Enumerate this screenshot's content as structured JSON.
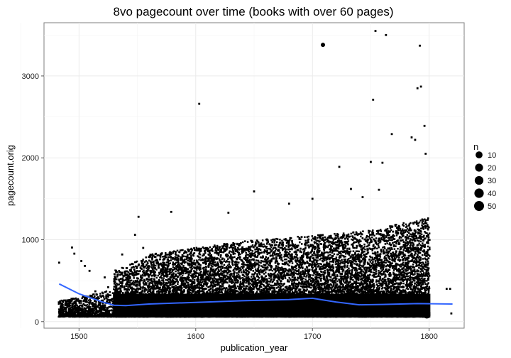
{
  "chart_data": {
    "type": "scatter",
    "title": "8vo pagecount over time (books with over 60 pages)",
    "xlabel": "publication_year",
    "ylabel": "pagecount.orig",
    "xlim": [
      1470,
      1830
    ],
    "ylim": [
      -80,
      3650
    ],
    "x_ticks": [
      1500,
      1600,
      1700,
      1800
    ],
    "y_ticks": [
      0,
      1000,
      2000,
      3000
    ],
    "grid": true,
    "point_color": "#000000",
    "smooth_color": "#3366FF",
    "outlier_points": [
      {
        "x": 1483,
        "y": 720
      },
      {
        "x": 1483,
        "y": 120
      },
      {
        "x": 1490,
        "y": 260
      },
      {
        "x": 1494,
        "y": 905
      },
      {
        "x": 1496,
        "y": 830
      },
      {
        "x": 1502,
        "y": 740
      },
      {
        "x": 1505,
        "y": 680
      },
      {
        "x": 1509,
        "y": 620
      },
      {
        "x": 1514,
        "y": 370
      },
      {
        "x": 1517,
        "y": 210
      },
      {
        "x": 1522,
        "y": 540
      },
      {
        "x": 1525,
        "y": 420
      },
      {
        "x": 1537,
        "y": 820
      },
      {
        "x": 1548,
        "y": 1060
      },
      {
        "x": 1551,
        "y": 1280
      },
      {
        "x": 1555,
        "y": 900
      },
      {
        "x": 1579,
        "y": 1340
      },
      {
        "x": 1603,
        "y": 2660
      },
      {
        "x": 1628,
        "y": 1330
      },
      {
        "x": 1650,
        "y": 1590
      },
      {
        "x": 1680,
        "y": 1440
      },
      {
        "x": 1700,
        "y": 1500
      },
      {
        "x": 1709,
        "y": 3380
      },
      {
        "x": 1723,
        "y": 1890
      },
      {
        "x": 1733,
        "y": 1620
      },
      {
        "x": 1743,
        "y": 1520
      },
      {
        "x": 1750,
        "y": 1950
      },
      {
        "x": 1752,
        "y": 2710
      },
      {
        "x": 1754,
        "y": 3550
      },
      {
        "x": 1757,
        "y": 1610
      },
      {
        "x": 1760,
        "y": 1940
      },
      {
        "x": 1763,
        "y": 3500
      },
      {
        "x": 1768,
        "y": 2290
      },
      {
        "x": 1785,
        "y": 2250
      },
      {
        "x": 1788,
        "y": 2220
      },
      {
        "x": 1790,
        "y": 2850
      },
      {
        "x": 1792,
        "y": 3370
      },
      {
        "x": 1793,
        "y": 2870
      },
      {
        "x": 1796,
        "y": 2390
      },
      {
        "x": 1797,
        "y": 2050
      },
      {
        "x": 1815,
        "y": 400
      },
      {
        "x": 1818,
        "y": 400
      },
      {
        "x": 1819,
        "y": 100
      }
    ],
    "smooth_series": {
      "x": [
        1483,
        1500,
        1520,
        1530,
        1540,
        1560,
        1600,
        1640,
        1680,
        1700,
        1720,
        1740,
        1760,
        1790,
        1820
      ],
      "y": [
        460,
        340,
        240,
        200,
        195,
        215,
        235,
        255,
        270,
        285,
        240,
        205,
        210,
        220,
        215
      ]
    },
    "legend": {
      "title": "n",
      "position": "right",
      "items": [
        {
          "label": "10",
          "value": 10
        },
        {
          "label": "20",
          "value": 20
        },
        {
          "label": "30",
          "value": 30
        },
        {
          "label": "40",
          "value": 40
        },
        {
          "label": "50",
          "value": 50
        }
      ]
    }
  }
}
